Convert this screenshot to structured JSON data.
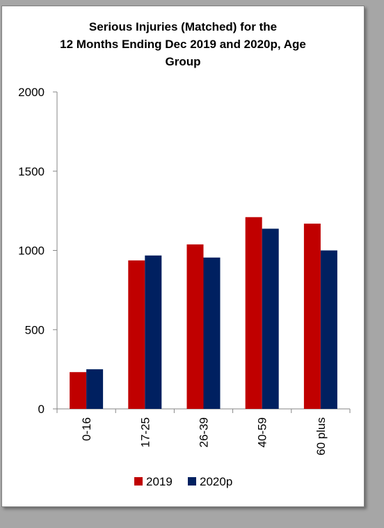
{
  "chart_data": {
    "type": "bar",
    "title_lines": [
      "Serious Injuries (Matched) for the",
      "12 Months Ending Dec 2019 and  2020p, Age",
      "Group"
    ],
    "categories": [
      "0-16",
      "17-25",
      "26-39",
      "40-59",
      "60 plus"
    ],
    "series": [
      {
        "name": "2019",
        "color": "#c00000",
        "values": [
          232,
          937,
          1038,
          1210,
          1169
        ]
      },
      {
        "name": "2020p",
        "color": "#002060",
        "values": [
          250,
          968,
          955,
          1137,
          1000
        ]
      }
    ],
    "yticks": [
      "0",
      "500",
      "1000",
      "1500",
      "2000"
    ],
    "ylim": [
      0,
      2000
    ],
    "grid": false,
    "legend_position": "bottom"
  }
}
